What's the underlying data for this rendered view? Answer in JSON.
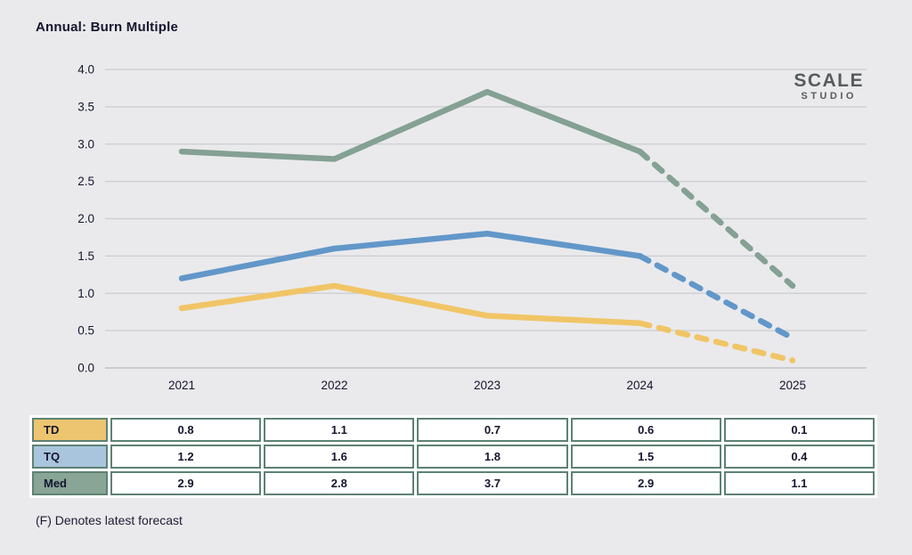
{
  "page": {
    "title": "Annual: Burn Multiple",
    "footnote": "(F) Denotes latest forecast"
  },
  "logo": {
    "line1": "SCALE",
    "line2": "STUDIO"
  },
  "chart_data": {
    "type": "line",
    "title": "Annual: Burn Multiple",
    "x": [
      "2021",
      "2022",
      "2023",
      "2024",
      "2025"
    ],
    "yticks": [
      "4.0",
      "3.5",
      "3.0",
      "2.5",
      "2.0",
      "1.5",
      "1.0",
      "0.5",
      "0.0"
    ],
    "ylim": [
      0,
      4
    ],
    "grid": true,
    "legend": "none",
    "forecast_dashed_from_index": 3,
    "series": [
      {
        "name": "TD",
        "color": "#f1c566",
        "values": [
          0.8,
          1.1,
          0.7,
          0.6,
          0.1
        ]
      },
      {
        "name": "TQ",
        "color": "#6297c9",
        "values": [
          1.2,
          1.6,
          1.8,
          1.5,
          0.4
        ]
      },
      {
        "name": "Med",
        "color": "#84a193",
        "values": [
          2.9,
          2.8,
          3.7,
          2.9,
          1.1
        ]
      }
    ]
  },
  "table": {
    "rows": [
      {
        "label": "TD",
        "color": "#edc46f",
        "values": [
          "0.8",
          "1.1",
          "0.7",
          "0.6",
          "0.1"
        ]
      },
      {
        "label": "TQ",
        "color": "#a9c5dd",
        "values": [
          "1.2",
          "1.6",
          "1.8",
          "1.5",
          "0.4"
        ]
      },
      {
        "label": "Med",
        "color": "#88a595",
        "values": [
          "2.9",
          "2.8",
          "3.7",
          "2.9",
          "1.1"
        ]
      }
    ]
  },
  "colors": {
    "background": "#eaeaec",
    "text": "#15152f",
    "gridline": "#cbccd1",
    "baseline": "#b9bac1",
    "table_border": "#5d8273",
    "logo_text": "#565c5b"
  }
}
